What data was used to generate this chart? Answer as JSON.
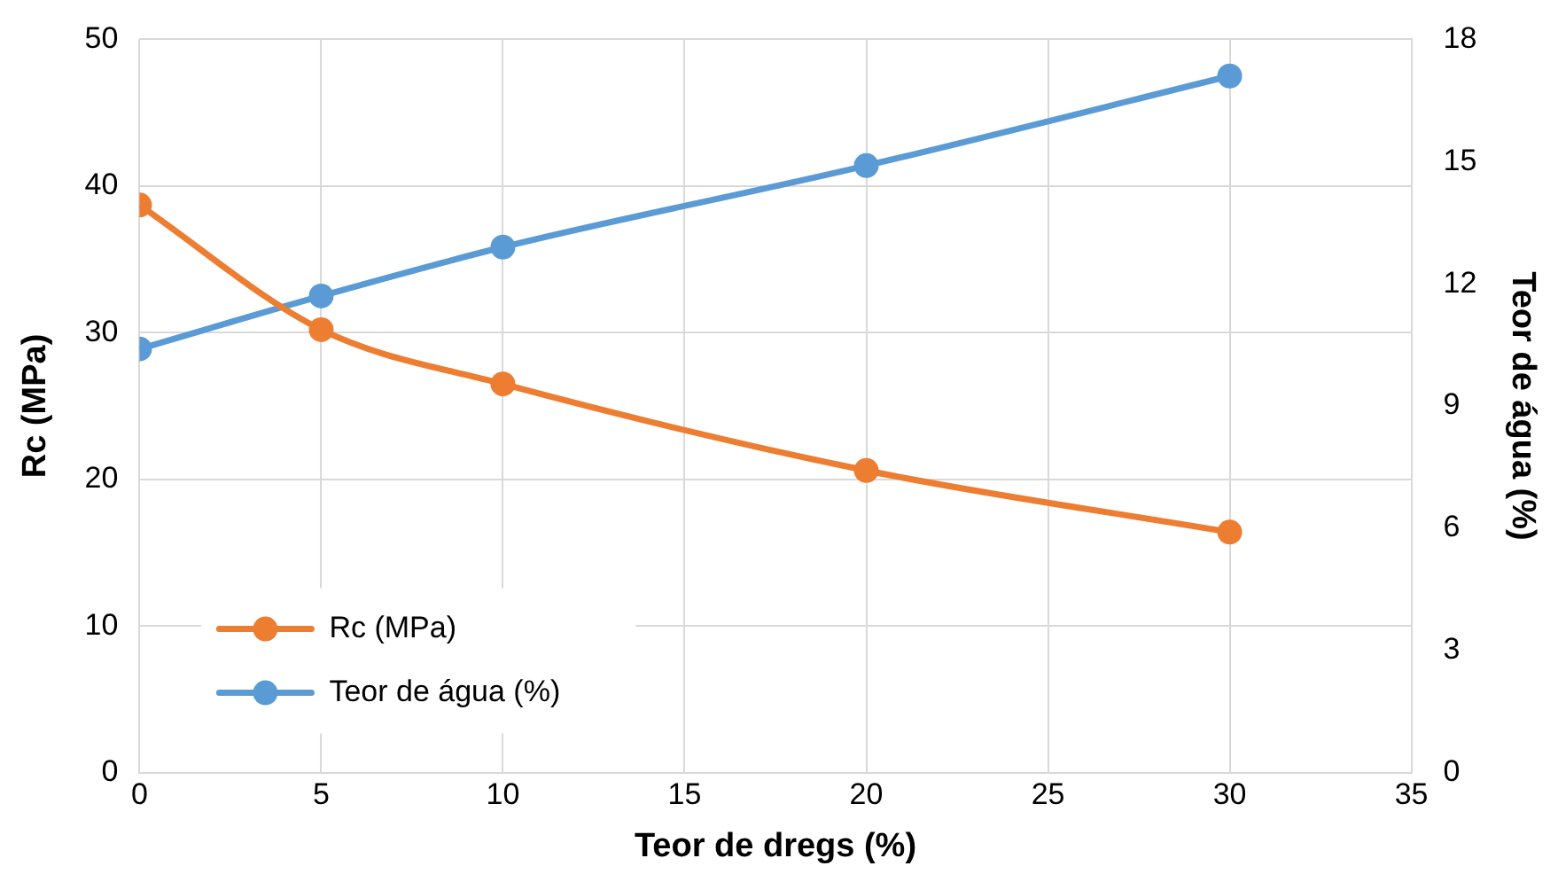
{
  "chart_data": {
    "type": "line",
    "xlabel": "Teor de dregs (%)",
    "ylabel": "Rc (MPa)",
    "y2label": "Teor de água (%)",
    "x": [
      0,
      5,
      10,
      20,
      30
    ],
    "series": [
      {
        "name": "Rc (MPa)",
        "color": "#ed7d31",
        "values": [
          38.7,
          30.2,
          26.5,
          20.6,
          16.4
        ]
      },
      {
        "name": "Teor de água (%)",
        "color": "#5b9bd5",
        "axis": "y2",
        "values": [
          10.4,
          11.7,
          12.9,
          14.9,
          17.1
        ]
      }
    ],
    "xlim": [
      0,
      35
    ],
    "xticks": [
      0,
      5,
      10,
      15,
      20,
      25,
      30,
      35
    ],
    "ylim": [
      0,
      50
    ],
    "yticks": [
      0,
      10,
      20,
      30,
      40,
      50
    ],
    "y2lim": [
      0,
      18
    ],
    "y2ticks": [
      0,
      3,
      6,
      9,
      12,
      15,
      18
    ],
    "grid": true,
    "legend": "bottom left",
    "marker": "circle",
    "line_style": "solid"
  }
}
